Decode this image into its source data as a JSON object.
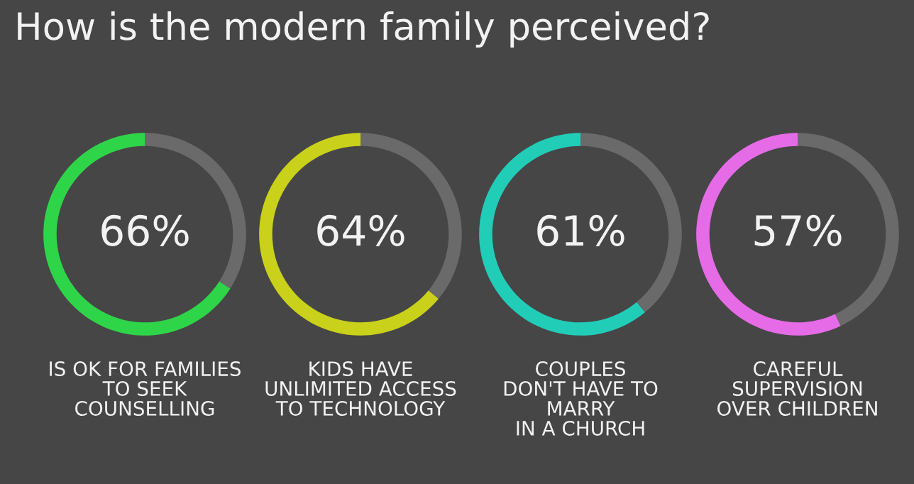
{
  "chart_data": [
    {
      "type": "donut",
      "title": "How is the modern family perceived?",
      "categories": [
        "IS OK FOR FAMILIES\nTO SEEK\nCOUNSELLING",
        null
      ],
      "values": [
        66,
        34
      ],
      "colors": [
        "#2fd549",
        "#6a6a6a"
      ],
      "value_labels": [
        "66%",
        null
      ],
      "legend": false
    },
    {
      "type": "donut",
      "categories": [
        "KIDS HAVE\nUNLIMITED ACCESS\nTO TECHNOLOGY",
        null
      ],
      "values": [
        64,
        36
      ],
      "colors": [
        "#c9d11a",
        "#6a6a6a"
      ],
      "value_labels": [
        "64%",
        null
      ],
      "legend": false
    },
    {
      "type": "donut",
      "categories": [
        "COUPLES\nDON'T HAVE TO\nMARRY\nIN A CHURCH",
        null
      ],
      "values": [
        61,
        39
      ],
      "colors": [
        "#22cdb8",
        "#6a6a6a"
      ],
      "value_labels": [
        "61%",
        null
      ],
      "legend": false
    },
    {
      "type": "donut",
      "categories": [
        "CAREFUL\nSUPERVISION\nOVER CHILDREN",
        null
      ],
      "values": [
        57,
        43
      ],
      "colors": [
        "#e56ce6",
        "#6a6a6a"
      ],
      "value_labels": [
        "57%",
        null
      ],
      "legend": false
    }
  ]
}
